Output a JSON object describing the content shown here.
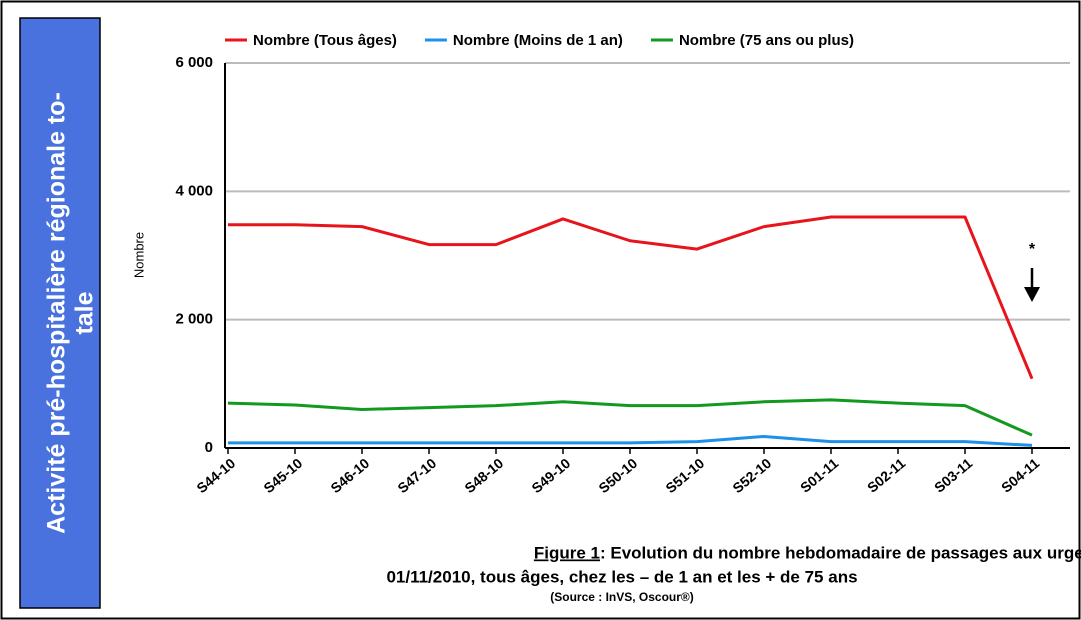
{
  "banner": {
    "lines": [
      "Activité pré-hospitalière régionale to-",
      "tale"
    ]
  },
  "chart_data": {
    "type": "line",
    "y_label": "Nombre",
    "categories": [
      "S44-10",
      "S45-10",
      "S46-10",
      "S47-10",
      "S48-10",
      "S49-10",
      "S50-10",
      "S51-10",
      "S52-10",
      "S01-11",
      "S02-11",
      "S03-11",
      "S04-11"
    ],
    "series": [
      {
        "name": "Nombre (Tous âges)",
        "color": "#e8141b",
        "values": [
          3480,
          3480,
          3450,
          3170,
          3170,
          3570,
          3230,
          3100,
          3450,
          3600,
          3600,
          3600,
          1080
        ]
      },
      {
        "name": "Nombre (Moins de 1 an)",
        "color": "#1e90e8",
        "values": [
          80,
          80,
          80,
          80,
          80,
          80,
          80,
          100,
          180,
          100,
          100,
          100,
          40
        ]
      },
      {
        "name": "Nombre (75 ans ou plus)",
        "color": "#119a1e",
        "values": [
          700,
          670,
          600,
          630,
          660,
          720,
          660,
          660,
          720,
          750,
          700,
          660,
          200
        ]
      }
    ],
    "ylim": [
      0,
      6000
    ],
    "yticks": [
      0,
      {
        "value": 2000,
        "label": "2 000"
      },
      {
        "value": 4000,
        "label": "4 000"
      },
      {
        "value": 6000,
        "label": "6 000"
      }
    ],
    "grid": true,
    "legend": "top",
    "annotation": "*"
  },
  "caption": {
    "label": "Figure 1",
    "line1": " : Evolution du nombre hebdomadaire de passages aux urgences du Limousin depuis le",
    "line2": "01/11/2010, tous âges, chez les – de 1 an et les  + de 75 ans",
    "line3": "(Source : InVS, Oscour®)"
  }
}
